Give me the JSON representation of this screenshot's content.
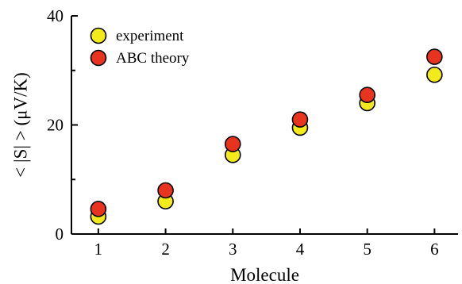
{
  "chart_data": {
    "type": "scatter",
    "title": "",
    "xlabel": "Molecule",
    "ylabel": "< |S| > (μV/K)",
    "xlim": [
      0.6,
      6.35
    ],
    "ylim": [
      0,
      40
    ],
    "x_ticks": [
      "1",
      "2",
      "3",
      "4",
      "5",
      "6"
    ],
    "y_ticks": [
      "0",
      "20",
      "40"
    ],
    "legend_position": "top-left",
    "series": [
      {
        "name": "experiment",
        "color": "#f2ea1a",
        "x": [
          1,
          2,
          3,
          4,
          5,
          6
        ],
        "y": [
          3.2,
          6.0,
          14.5,
          19.5,
          24.0,
          29.2
        ]
      },
      {
        "name": "ABC theory",
        "color": "#e8341f",
        "x": [
          1,
          2,
          3,
          4,
          5,
          6
        ],
        "y": [
          4.6,
          8.0,
          16.5,
          21.0,
          25.5,
          32.5
        ]
      }
    ]
  }
}
